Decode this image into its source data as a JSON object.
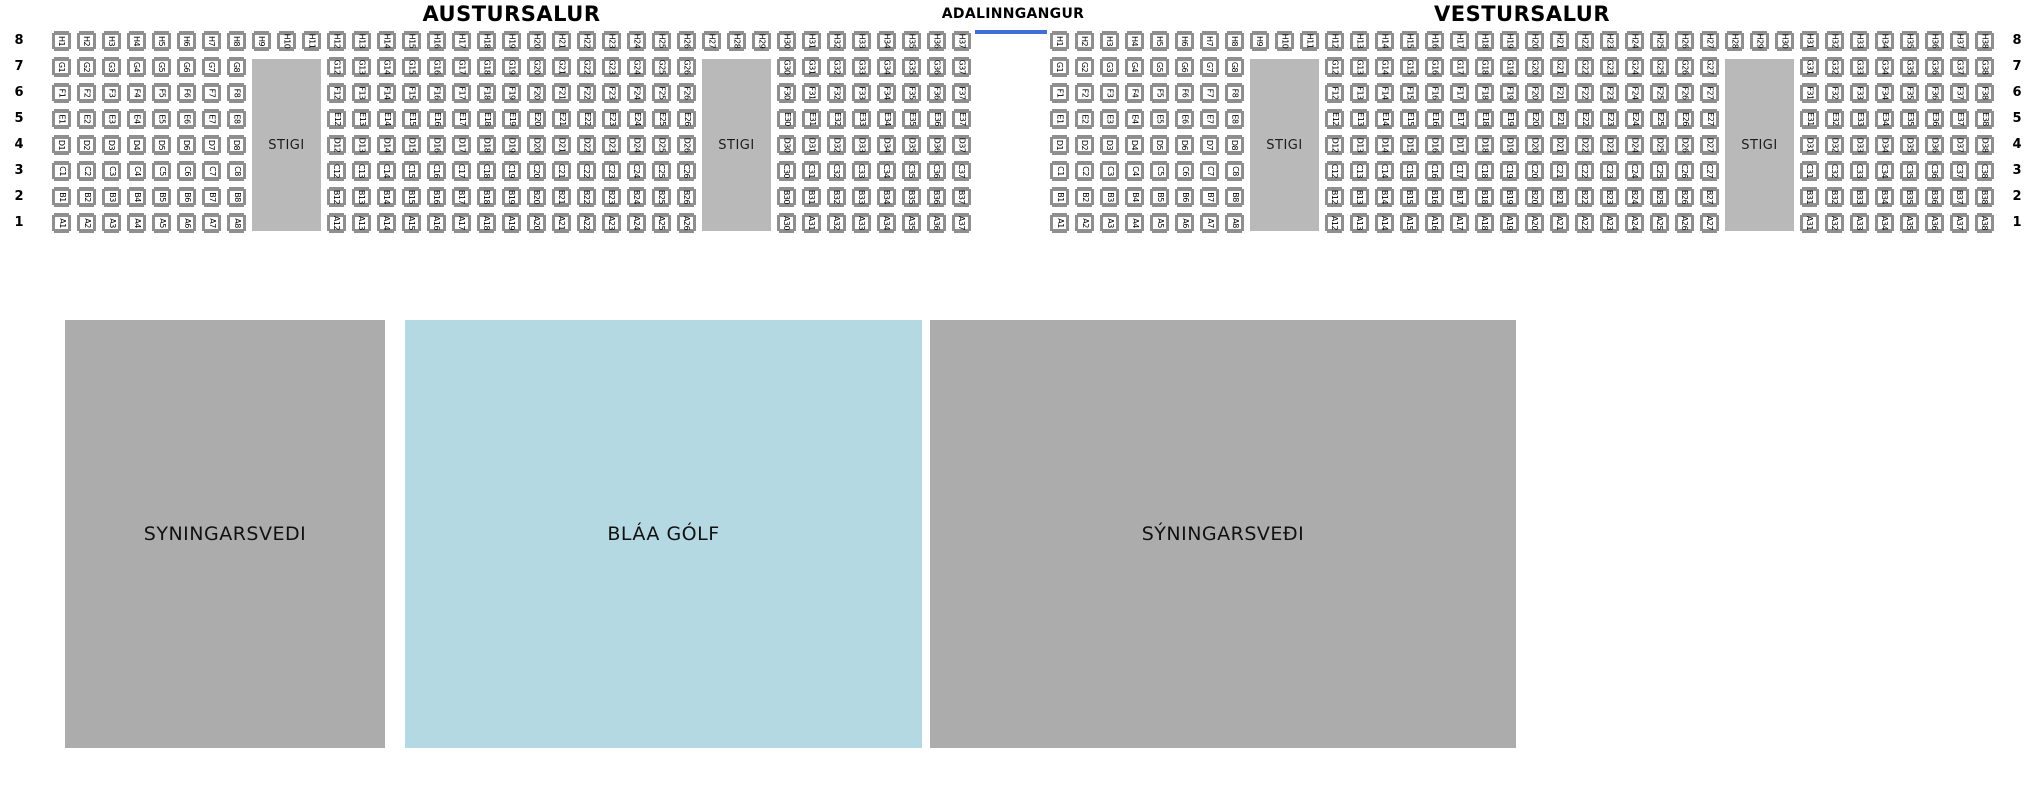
{
  "colors": {
    "seat_border": "#8f8f8f",
    "seat_fill": "#ffffff",
    "seat_text": "#000000",
    "stigi": "#b9b9b9",
    "area_gray": "#acacac",
    "area_blue": "#b5d9e2",
    "entrance": "#3e6ed8"
  },
  "row_numbers_top_to_bottom": [
    "8",
    "7",
    "6",
    "5",
    "4",
    "3",
    "2",
    "1"
  ],
  "row_letters_top_to_bottom": [
    "H",
    "G",
    "F",
    "E",
    "D",
    "C",
    "B",
    "A"
  ],
  "full_row_letter": "H",
  "stigi_label": "STIGI",
  "entrance": {
    "label": "ADALINNGANGUR"
  },
  "halls": [
    {
      "title": "AUSTURSALUR",
      "segments": [
        {
          "type": "seats",
          "cols": [
            1,
            8
          ]
        },
        {
          "type": "stigi",
          "h_cols": [
            9,
            11
          ]
        },
        {
          "type": "seats",
          "cols": [
            12,
            26
          ]
        },
        {
          "type": "stigi",
          "h_cols": [
            27,
            29
          ]
        },
        {
          "type": "seats",
          "cols": [
            30,
            37
          ]
        }
      ]
    },
    {
      "title": "VESTURSALUR",
      "segments": [
        {
          "type": "seats",
          "cols": [
            1,
            8
          ]
        },
        {
          "type": "stigi",
          "h_cols": [
            9,
            11
          ]
        },
        {
          "type": "seats",
          "cols": [
            12,
            27
          ]
        },
        {
          "type": "stigi",
          "h_cols": [
            28,
            30
          ]
        },
        {
          "type": "seats",
          "cols": [
            31,
            38
          ]
        }
      ]
    }
  ],
  "areas": [
    {
      "label": "SYNINGARSVEDI",
      "fill": "gray"
    },
    {
      "label": "BLÁA GÓLF",
      "fill": "blue"
    },
    {
      "label": "SÝNINGARSVEÐI",
      "fill": "gray"
    }
  ]
}
